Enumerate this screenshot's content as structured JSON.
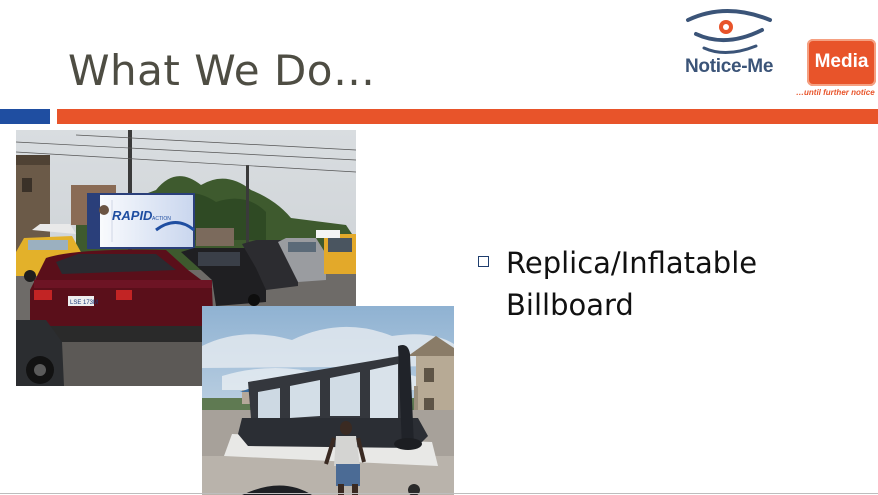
{
  "slide": {
    "title": "What We Do…",
    "accent_blue": "#1f4ea1",
    "accent_orange": "#e8542a"
  },
  "logo": {
    "name_part": "Notice-Me",
    "box_label": "Media",
    "tagline": "…until further notice"
  },
  "bullets": [
    {
      "icon": "hollow-square-icon",
      "text": "Replica/Inflatable Billboard"
    }
  ],
  "billboard": {
    "brand": "RAPID",
    "brand_suffix": "ACTION",
    "plate": "LSE 173M"
  }
}
